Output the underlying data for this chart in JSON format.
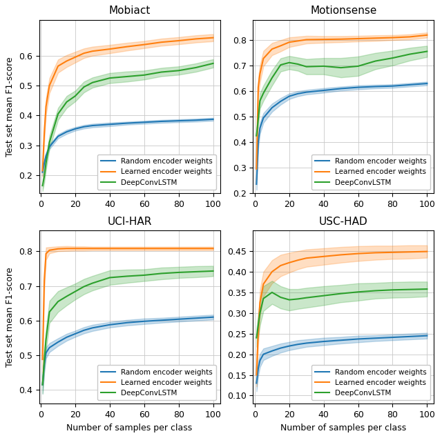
{
  "x": [
    1,
    2,
    3,
    5,
    10,
    15,
    20,
    25,
    30,
    40,
    50,
    60,
    70,
    80,
    90,
    100
  ],
  "datasets": {
    "Mobiact": {
      "random_mean": [
        0.21,
        0.24,
        0.265,
        0.295,
        0.33,
        0.345,
        0.355,
        0.362,
        0.366,
        0.37,
        0.374,
        0.377,
        0.38,
        0.382,
        0.384,
        0.387
      ],
      "random_std": [
        0.012,
        0.01,
        0.009,
        0.008,
        0.007,
        0.007,
        0.006,
        0.006,
        0.006,
        0.006,
        0.005,
        0.005,
        0.005,
        0.005,
        0.005,
        0.005
      ],
      "learned_mean": [
        0.215,
        0.34,
        0.43,
        0.5,
        0.565,
        0.582,
        0.595,
        0.608,
        0.615,
        0.622,
        0.63,
        0.637,
        0.645,
        0.65,
        0.656,
        0.66
      ],
      "learned_std": [
        0.02,
        0.028,
        0.028,
        0.025,
        0.022,
        0.02,
        0.018,
        0.016,
        0.015,
        0.014,
        0.013,
        0.012,
        0.012,
        0.012,
        0.012,
        0.012
      ],
      "deep_mean": [
        0.165,
        0.195,
        0.24,
        0.31,
        0.405,
        0.445,
        0.465,
        0.495,
        0.51,
        0.525,
        0.53,
        0.535,
        0.545,
        0.55,
        0.56,
        0.574
      ],
      "deep_std": [
        0.018,
        0.02,
        0.022,
        0.022,
        0.02,
        0.02,
        0.018,
        0.018,
        0.017,
        0.017,
        0.017,
        0.015,
        0.014,
        0.014,
        0.014,
        0.014
      ],
      "ylim": [
        0.14,
        0.72
      ],
      "yticks": [
        0.2,
        0.3,
        0.4,
        0.5,
        0.6
      ]
    },
    "Motionsense": {
      "random_mean": [
        0.235,
        0.4,
        0.455,
        0.495,
        0.535,
        0.56,
        0.58,
        0.59,
        0.596,
        0.603,
        0.61,
        0.615,
        0.618,
        0.62,
        0.625,
        0.63
      ],
      "random_std": [
        0.022,
        0.026,
        0.022,
        0.019,
        0.016,
        0.013,
        0.011,
        0.01,
        0.009,
        0.009,
        0.008,
        0.008,
        0.007,
        0.007,
        0.007,
        0.007
      ],
      "learned_mean": [
        0.295,
        0.615,
        0.668,
        0.728,
        0.765,
        0.778,
        0.792,
        0.797,
        0.802,
        0.803,
        0.804,
        0.806,
        0.808,
        0.81,
        0.813,
        0.82
      ],
      "learned_std": [
        0.042,
        0.038,
        0.034,
        0.03,
        0.024,
        0.022,
        0.019,
        0.017,
        0.015,
        0.013,
        0.012,
        0.011,
        0.011,
        0.01,
        0.01,
        0.01
      ],
      "deep_mean": [
        0.425,
        0.49,
        0.562,
        0.592,
        0.652,
        0.703,
        0.712,
        0.706,
        0.696,
        0.698,
        0.692,
        0.698,
        0.718,
        0.73,
        0.745,
        0.756
      ],
      "deep_std": [
        0.018,
        0.03,
        0.03,
        0.03,
        0.03,
        0.026,
        0.026,
        0.026,
        0.03,
        0.032,
        0.038,
        0.038,
        0.032,
        0.029,
        0.025,
        0.022
      ],
      "ylim": [
        0.2,
        0.88
      ],
      "yticks": [
        0.2,
        0.3,
        0.4,
        0.5,
        0.6,
        0.7,
        0.8
      ]
    },
    "UCI-HAR": {
      "random_mean": [
        0.415,
        0.475,
        0.507,
        0.522,
        0.538,
        0.552,
        0.562,
        0.572,
        0.579,
        0.588,
        0.594,
        0.598,
        0.601,
        0.604,
        0.607,
        0.61
      ],
      "random_std": [
        0.026,
        0.022,
        0.016,
        0.013,
        0.011,
        0.01,
        0.009,
        0.009,
        0.009,
        0.008,
        0.008,
        0.008,
        0.007,
        0.007,
        0.007,
        0.007
      ],
      "learned_mean": [
        0.488,
        0.715,
        0.793,
        0.803,
        0.807,
        0.808,
        0.808,
        0.808,
        0.808,
        0.808,
        0.808,
        0.808,
        0.808,
        0.808,
        0.808,
        0.808
      ],
      "learned_std": [
        0.038,
        0.03,
        0.018,
        0.009,
        0.007,
        0.007,
        0.006,
        0.006,
        0.005,
        0.005,
        0.005,
        0.005,
        0.005,
        0.005,
        0.005,
        0.005
      ],
      "deep_mean": [
        0.415,
        0.485,
        0.545,
        0.625,
        0.655,
        0.67,
        0.684,
        0.698,
        0.708,
        0.724,
        0.728,
        0.731,
        0.736,
        0.739,
        0.741,
        0.743
      ],
      "deep_std": [
        0.026,
        0.032,
        0.032,
        0.032,
        0.03,
        0.026,
        0.023,
        0.022,
        0.021,
        0.021,
        0.019,
        0.017,
        0.017,
        0.016,
        0.016,
        0.015
      ],
      "ylim": [
        0.36,
        0.86
      ],
      "yticks": [
        0.4,
        0.5,
        0.6,
        0.7,
        0.8
      ]
    },
    "USC-HAD": {
      "random_mean": [
        0.13,
        0.165,
        0.185,
        0.2,
        0.208,
        0.215,
        0.22,
        0.224,
        0.227,
        0.231,
        0.234,
        0.237,
        0.239,
        0.241,
        0.243,
        0.245
      ],
      "random_std": [
        0.02,
        0.018,
        0.016,
        0.014,
        0.012,
        0.011,
        0.01,
        0.01,
        0.009,
        0.009,
        0.008,
        0.008,
        0.007,
        0.007,
        0.007,
        0.007
      ],
      "learned_mean": [
        0.15,
        0.255,
        0.325,
        0.37,
        0.4,
        0.415,
        0.422,
        0.428,
        0.433,
        0.437,
        0.441,
        0.444,
        0.446,
        0.447,
        0.448,
        0.449
      ],
      "learned_std": [
        0.028,
        0.032,
        0.032,
        0.03,
        0.028,
        0.026,
        0.024,
        0.022,
        0.021,
        0.02,
        0.019,
        0.018,
        0.017,
        0.016,
        0.016,
        0.015
      ],
      "deep_mean": [
        0.24,
        0.27,
        0.3,
        0.335,
        0.35,
        0.338,
        0.332,
        0.334,
        0.337,
        0.342,
        0.347,
        0.351,
        0.354,
        0.356,
        0.357,
        0.358
      ],
      "deep_std": [
        0.022,
        0.028,
        0.03,
        0.03,
        0.028,
        0.027,
        0.026,
        0.024,
        0.024,
        0.023,
        0.021,
        0.021,
        0.019,
        0.019,
        0.019,
        0.018
      ],
      "ylim": [
        0.08,
        0.5
      ],
      "yticks": [
        0.1,
        0.15,
        0.2,
        0.25,
        0.3,
        0.35,
        0.4,
        0.45
      ]
    }
  },
  "subplot_titles": [
    "Mobiact",
    "Motionsense",
    "UCI-HAR",
    "USC-HAD"
  ],
  "colors": {
    "random": "#1f77b4",
    "learned": "#ff7f0e",
    "deep": "#2ca02c"
  },
  "alpha_fill": 0.25,
  "legend_labels": [
    "Random encoder weights",
    "Learned encoder weights",
    "DeepConvLSTM"
  ],
  "xlabel": "Number of samples per class",
  "ylabel": "Test set mean F1-score",
  "xticks": [
    0,
    20,
    40,
    60,
    80,
    100
  ],
  "figsize": [
    6.4,
    6.35
  ],
  "dpi": 100
}
